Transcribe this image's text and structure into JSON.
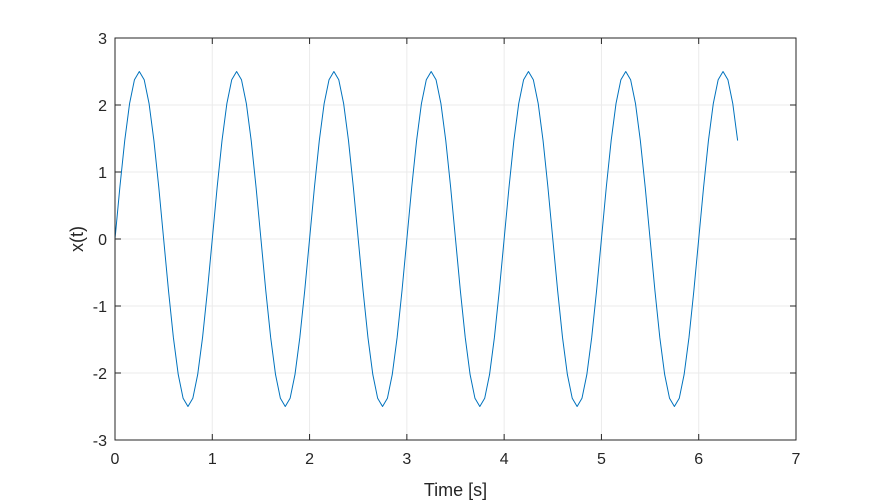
{
  "chart_data": {
    "type": "line",
    "title": "",
    "xlabel": "Time [s]",
    "ylabel": "x(t)",
    "xlim": [
      0,
      7
    ],
    "ylim": [
      -3,
      3
    ],
    "xticks": [
      0,
      1,
      2,
      3,
      4,
      5,
      6,
      7
    ],
    "yticks": [
      -3,
      -2,
      -1,
      0,
      1,
      2,
      3
    ],
    "xtick_labels": [
      "0",
      "1",
      "2",
      "3",
      "4",
      "5",
      "6",
      "7"
    ],
    "ytick_labels": [
      "-3",
      "-2",
      "-1",
      "0",
      "1",
      "2",
      "3"
    ],
    "grid": true,
    "box": true,
    "series": [
      {
        "color": "#0072BD",
        "function": "2.5*sin(2*pi*t)",
        "amplitude": 2.5,
        "frequency_hz": 1,
        "x_start": 0,
        "x_end": 6.4,
        "sample_step": 0.05
      }
    ]
  },
  "colors": {
    "axis": "#262626",
    "grid": "#ebebeb",
    "line": "#0072BD",
    "background": "#ffffff"
  }
}
